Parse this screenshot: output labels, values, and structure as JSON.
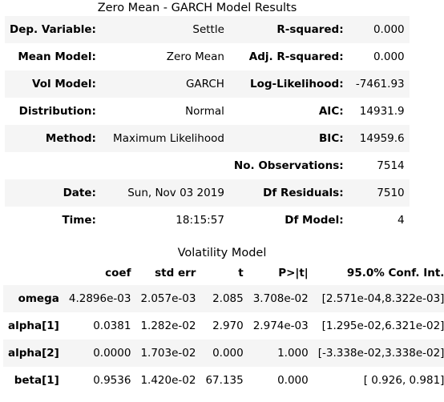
{
  "summary_caption": "Zero Mean - GARCH Model Results",
  "summary_rows": [
    {
      "l1": "Dep. Variable:",
      "v1": "Settle",
      "l2": "R-squared:",
      "v2": "0.000"
    },
    {
      "l1": "Mean Model:",
      "v1": "Zero Mean",
      "l2": "Adj. R-squared:",
      "v2": "0.000"
    },
    {
      "l1": "Vol Model:",
      "v1": "GARCH",
      "l2": "Log-Likelihood:",
      "v2": "-7461.93"
    },
    {
      "l1": "Distribution:",
      "v1": "Normal",
      "l2": "AIC:",
      "v2": "14931.9"
    },
    {
      "l1": "Method:",
      "v1": "Maximum Likelihood",
      "l2": "BIC:",
      "v2": "14959.6"
    },
    {
      "l1": "",
      "v1": "",
      "l2": "No. Observations:",
      "v2": "7514"
    },
    {
      "l1": "Date:",
      "v1": "Sun, Nov 03 2019",
      "l2": "Df Residuals:",
      "v2": "7510"
    },
    {
      "l1": "Time:",
      "v1": "18:15:57",
      "l2": "Df Model:",
      "v2": "4"
    }
  ],
  "vol_caption": "Volatility Model",
  "vol_headers": [
    "",
    "coef",
    "std err",
    "t",
    "P>|t|",
    "95.0% Conf. Int."
  ],
  "vol_rows": [
    {
      "name": "omega",
      "coef": "4.2896e-03",
      "stderr": "2.057e-03",
      "t": "2.085",
      "p": "3.708e-02",
      "ci": "[2.571e-04,8.322e-03]"
    },
    {
      "name": "alpha[1]",
      "coef": "0.0381",
      "stderr": "1.282e-02",
      "t": "2.970",
      "p": "2.974e-03",
      "ci": "[1.295e-02,6.321e-02]"
    },
    {
      "name": "alpha[2]",
      "coef": "0.0000",
      "stderr": "1.703e-02",
      "t": "0.000",
      "p": "1.000",
      "ci": "[-3.338e-02,3.338e-02]"
    },
    {
      "name": "beta[1]",
      "coef": "0.9536",
      "stderr": "1.420e-02",
      "t": "67.135",
      "p": "0.000",
      "ci": "[ 0.926, 0.981]"
    }
  ]
}
